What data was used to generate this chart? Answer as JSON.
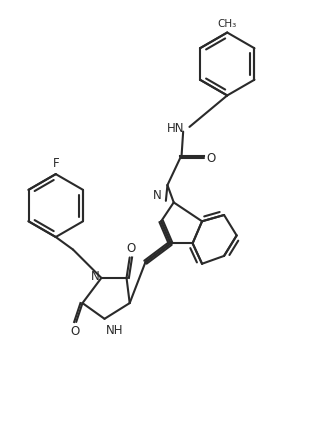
{
  "bg_color": "#ffffff",
  "line_color": "#2a2a2a",
  "line_width": 1.5,
  "figsize": [
    3.16,
    4.3
  ],
  "dpi": 100,
  "xlim": [
    0,
    10
  ],
  "ylim": [
    0,
    13.6
  ]
}
